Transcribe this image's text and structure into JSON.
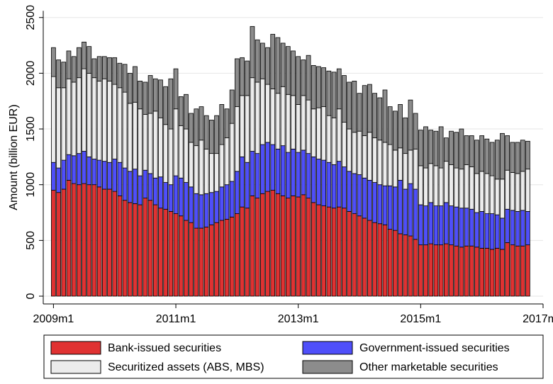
{
  "chart_data": {
    "type": "stacked_bar",
    "ylabel": "Amount (billion EUR)",
    "x": [
      0,
      1,
      2,
      3,
      4,
      5,
      6,
      7,
      8,
      9,
      10,
      11,
      12,
      13,
      14,
      15,
      16,
      17,
      18,
      19,
      20,
      21,
      22,
      23,
      24,
      25,
      26,
      27,
      28,
      29,
      30,
      31,
      32,
      33,
      34,
      35,
      36,
      37,
      38,
      39,
      40,
      41,
      42,
      43,
      44,
      45,
      46,
      47,
      48,
      49,
      50,
      51,
      52,
      53,
      54,
      55,
      56,
      57,
      58,
      59,
      60,
      61,
      62,
      63,
      64,
      65,
      66,
      67,
      68,
      69,
      70,
      71,
      72,
      73,
      74,
      75,
      76,
      77,
      78,
      79,
      80,
      81,
      82,
      83,
      84,
      85,
      86,
      87,
      88,
      89,
      90,
      91,
      92,
      93
    ],
    "xlim": [
      -2,
      96
    ],
    "xticks": [
      {
        "value": 0,
        "label": "2009m1"
      },
      {
        "value": 24,
        "label": "2011m1"
      },
      {
        "value": 48,
        "label": "2013m1"
      },
      {
        "value": 72,
        "label": "2015m1"
      },
      {
        "value": 96,
        "label": "2017m1"
      }
    ],
    "ylim": [
      -70,
      2560
    ],
    "yticks": [
      0,
      500,
      1000,
      1500,
      2000,
      2500
    ],
    "grid": true,
    "legend": "bottom",
    "series": [
      {
        "name": "Bank-issued securities",
        "color": "#e03232",
        "values": [
          950,
          930,
          960,
          1040,
          1010,
          1000,
          1010,
          1000,
          1000,
          980,
          960,
          960,
          940,
          900,
          860,
          840,
          830,
          820,
          880,
          860,
          820,
          790,
          780,
          760,
          740,
          720,
          680,
          660,
          610,
          610,
          620,
          640,
          660,
          680,
          690,
          710,
          740,
          800,
          790,
          900,
          880,
          920,
          940,
          950,
          920,
          900,
          880,
          900,
          890,
          910,
          880,
          840,
          820,
          810,
          800,
          790,
          800,
          790,
          760,
          740,
          720,
          700,
          680,
          660,
          650,
          640,
          600,
          590,
          560,
          550,
          540,
          510,
          460,
          460,
          470,
          460,
          460,
          470,
          460,
          450,
          440,
          450,
          450,
          440,
          430,
          430,
          420,
          430,
          420,
          480,
          460,
          450,
          450,
          460
        ]
      },
      {
        "name": "Government-issued securities",
        "color": "#4f4ffa",
        "values": [
          250,
          220,
          260,
          230,
          250,
          280,
          290,
          250,
          230,
          240,
          250,
          240,
          290,
          300,
          290,
          280,
          310,
          260,
          250,
          240,
          240,
          280,
          240,
          240,
          340,
          340,
          340,
          320,
          310,
          300,
          300,
          290,
          280,
          300,
          310,
          320,
          380,
          450,
          410,
          400,
          400,
          440,
          440,
          410,
          400,
          450,
          410,
          420,
          400,
          400,
          400,
          410,
          410,
          410,
          400,
          390,
          410,
          370,
          360,
          360,
          370,
          360,
          360,
          360,
          350,
          350,
          390,
          390,
          480,
          410,
          470,
          450,
          360,
          350,
          370,
          350,
          350,
          370,
          350,
          350,
          350,
          340,
          330,
          310,
          330,
          310,
          320,
          300,
          280,
          300,
          310,
          310,
          320,
          300
        ]
      },
      {
        "name": "Securitized assets (ABS, MBS)",
        "color": "#ececec",
        "values": [
          770,
          720,
          650,
          680,
          660,
          680,
          740,
          750,
          730,
          710,
          740,
          730,
          670,
          670,
          680,
          610,
          600,
          600,
          500,
          540,
          600,
          530,
          520,
          500,
          600,
          470,
          480,
          400,
          430,
          490,
          400,
          350,
          340,
          380,
          420,
          520,
          580,
          550,
          600,
          660,
          640,
          590,
          520,
          500,
          500,
          530,
          520,
          480,
          430,
          490,
          480,
          430,
          460,
          480,
          420,
          420,
          470,
          400,
          380,
          370,
          390,
          380,
          430,
          400,
          400,
          390,
          370,
          330,
          290,
          320,
          300,
          360,
          350,
          340,
          350,
          360,
          340,
          370,
          370,
          350,
          350,
          390,
          380,
          350,
          360,
          360,
          340,
          320,
          350,
          350,
          340,
          340,
          350,
          380
        ]
      },
      {
        "name": "Other marketable securities",
        "color": "#8c8c8c",
        "values": [
          260,
          250,
          230,
          250,
          230,
          270,
          240,
          240,
          170,
          220,
          200,
          210,
          240,
          220,
          250,
          270,
          320,
          250,
          290,
          340,
          290,
          340,
          340,
          450,
          360,
          260,
          310,
          260,
          330,
          300,
          300,
          300,
          340,
          360,
          260,
          300,
          430,
          340,
          310,
          460,
          380,
          320,
          330,
          490,
          500,
          390,
          430,
          400,
          430,
          320,
          400,
          390,
          370,
          350,
          400,
          410,
          360,
          420,
          420,
          460,
          340,
          450,
          430,
          400,
          380,
          470,
          340,
          350,
          390,
          320,
          450,
          320,
          320,
          370,
          300,
          310,
          370,
          210,
          300,
          320,
          360,
          260,
          280,
          300,
          320,
          310,
          300,
          350,
          410,
          310,
          270,
          280,
          280,
          250
        ]
      }
    ]
  }
}
